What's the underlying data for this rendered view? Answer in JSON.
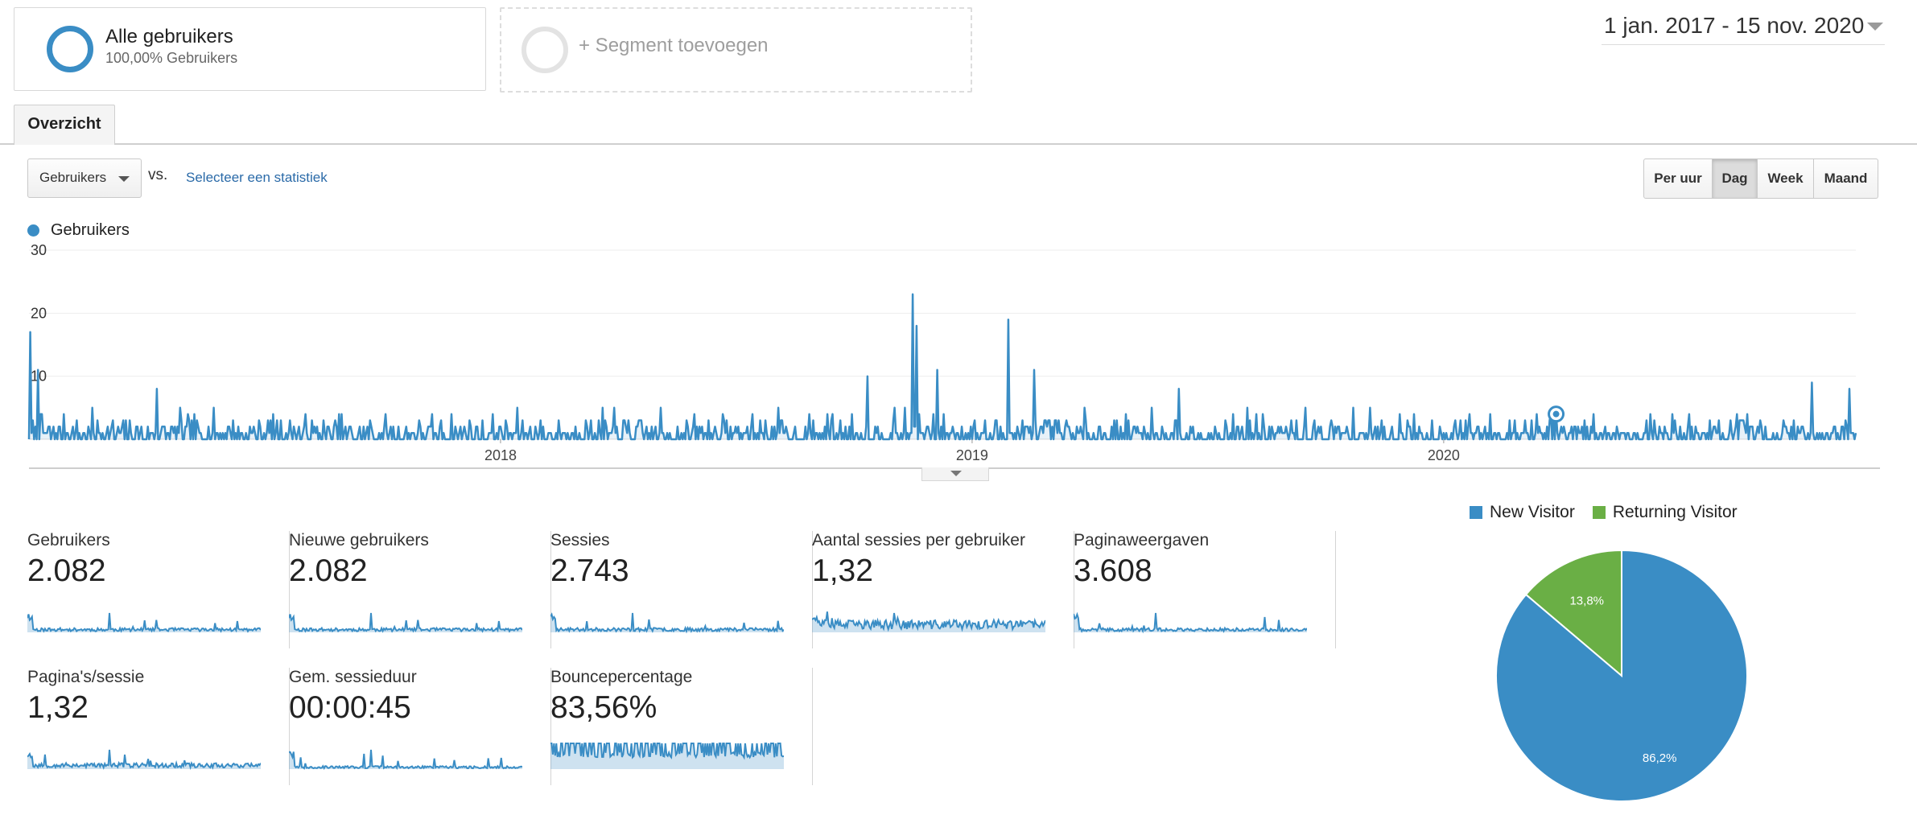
{
  "segments": {
    "active": {
      "title": "Alle gebruikers",
      "subtitle": "100,00% Gebruikers"
    },
    "add_label": "+ Segment toevoegen"
  },
  "date_range": "1 jan. 2017 - 15 nov. 2020",
  "tabs": [
    {
      "label": "Overzicht",
      "active": true
    }
  ],
  "controls": {
    "metric_select": "Gebruikers",
    "vs_label": "vs.",
    "select_stat_link": "Selecteer een statistiek",
    "granularity": [
      {
        "label": "Per uur",
        "active": false
      },
      {
        "label": "Dag",
        "active": true
      },
      {
        "label": "Week",
        "active": false
      },
      {
        "label": "Maand",
        "active": false
      }
    ]
  },
  "colors": {
    "primary": "#3a8dc5",
    "secondary": "#6aaf45",
    "link": "#2a6aa8"
  },
  "chart_data": [
    {
      "type": "area",
      "title": "",
      "series": [
        {
          "name": "Gebruikers"
        }
      ],
      "x_start": "2017-01-01",
      "x_end": "2020-11-15",
      "x_tick_labels": [
        "2018",
        "2019",
        "2020"
      ],
      "x_ticks": [
        "2018-01-01",
        "2019-01-01",
        "2020-01-01"
      ],
      "y_tick_labels": [
        "10",
        "20",
        "30"
      ],
      "ylim": [
        0,
        30
      ],
      "grid": true,
      "peaks": [
        {
          "x": "2017-01-02",
          "y": 17
        },
        {
          "x": "2017-01-08",
          "y": 11
        },
        {
          "x": "2017-04-10",
          "y": 8
        },
        {
          "x": "2018-10-12",
          "y": 10
        },
        {
          "x": "2018-11-16",
          "y": 23
        },
        {
          "x": "2018-11-19",
          "y": 18
        },
        {
          "x": "2018-12-05",
          "y": 11
        },
        {
          "x": "2019-01-29",
          "y": 19
        },
        {
          "x": "2019-02-18",
          "y": 11
        },
        {
          "x": "2019-06-10",
          "y": 8
        },
        {
          "x": "2020-03-28",
          "y": 4
        },
        {
          "x": "2020-10-12",
          "y": 9
        },
        {
          "x": "2020-11-10",
          "y": 8
        }
      ],
      "typical_daily_range": [
        0,
        4
      ],
      "marker_point": {
        "x": "2020-03-28",
        "y": 4
      }
    },
    {
      "type": "pie",
      "legend": [
        "New Visitor",
        "Returning Visitor"
      ],
      "legend_position": "top",
      "categories": [
        "New Visitor",
        "Returning Visitor"
      ],
      "values": [
        86.2,
        13.8
      ],
      "labels": [
        "86,2%",
        "13,8%"
      ],
      "colors": [
        "#3a8dc5",
        "#6aaf45"
      ]
    }
  ],
  "kpis": [
    {
      "label": "Gebruikers",
      "value": "2.082"
    },
    {
      "label": "Nieuwe gebruikers",
      "value": "2.082"
    },
    {
      "label": "Sessies",
      "value": "2.743"
    },
    {
      "label": "Aantal sessies per gebruiker",
      "value": "1,32"
    },
    {
      "label": "Paginaweergaven",
      "value": "3.608"
    },
    {
      "label": "Pagina's/sessie",
      "value": "1,32"
    },
    {
      "label": "Gem. sessieduur",
      "value": "00:00:45"
    },
    {
      "label": "Bouncepercentage",
      "value": "83,56%"
    }
  ]
}
